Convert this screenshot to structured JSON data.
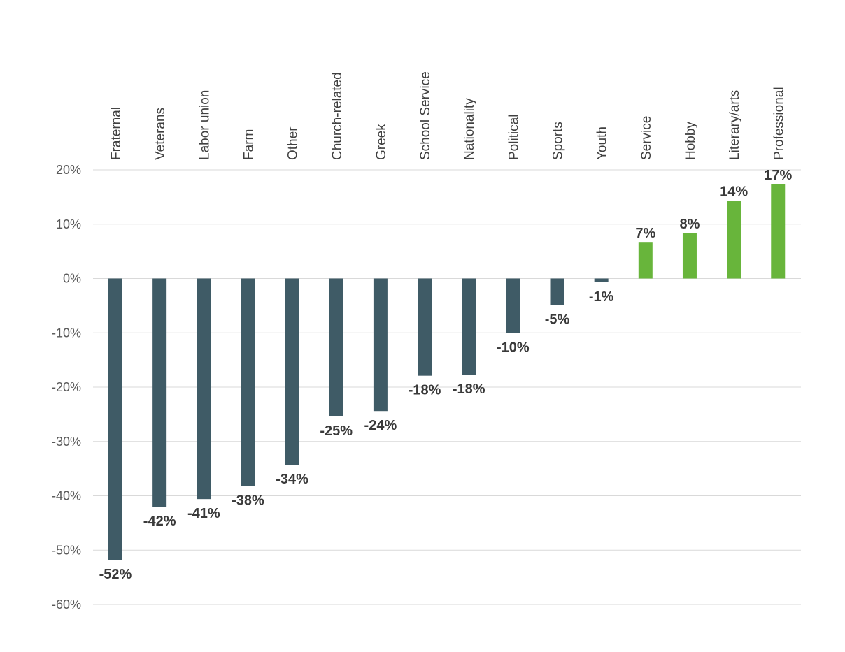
{
  "chart_data": {
    "type": "bar",
    "categories": [
      "Fraternal",
      "Veterans",
      "Labor union",
      "Farm",
      "Other",
      "Church-related",
      "Greek",
      "School Service",
      "Nationality",
      "Political",
      "Sports",
      "Youth",
      "Service",
      "Hobby",
      "Literary/arts",
      "Professional"
    ],
    "values": [
      -51.8,
      -42.0,
      -40.6,
      -38.2,
      -34.3,
      -25.4,
      -24.4,
      -17.9,
      -17.7,
      -10.0,
      -4.9,
      -0.7,
      6.6,
      8.3,
      14.3,
      17.3
    ],
    "data_labels": [
      "-52%",
      "-42%",
      "-41%",
      "-38%",
      "-34%",
      "-25%",
      "-24%",
      "-18%",
      "-18%",
      "-10%",
      "-5%",
      "-1%",
      "7%",
      "8%",
      "14%",
      "17%"
    ],
    "ylim": [
      -60,
      20
    ],
    "yticks": [
      20,
      10,
      0,
      -10,
      -20,
      -30,
      -40,
      -50,
      -60
    ],
    "ytick_labels": [
      "20%",
      "10%",
      "0%",
      "-10%",
      "-20%",
      "-30%",
      "-40%",
      "-50%",
      "-60%"
    ],
    "title": "",
    "xlabel": "",
    "ylabel": "",
    "grid": true,
    "category_label_position": "top, rotated vertical",
    "colors": {
      "negative": "#3f5b66",
      "positive": "#68b53b",
      "grid": "#d9d9d9",
      "tick_text": "#595959",
      "label_text": "#3a3a3a"
    }
  }
}
